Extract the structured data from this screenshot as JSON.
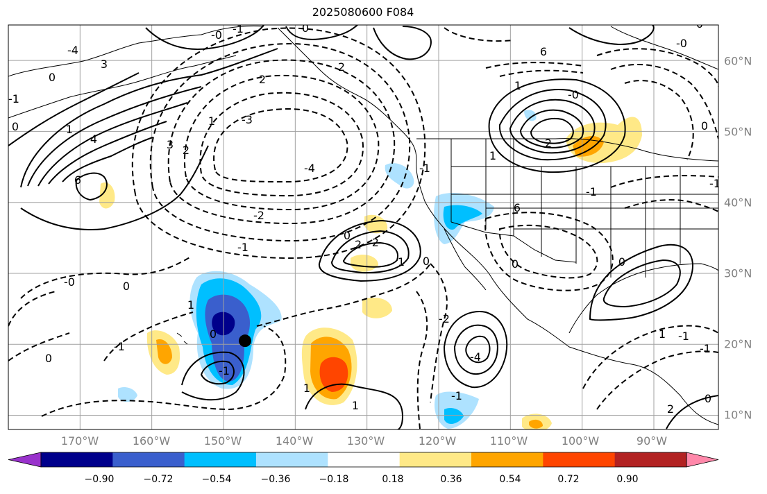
{
  "title": "2025080600 F084",
  "axes": {
    "lon_labels": [
      "170°W",
      "160°W",
      "150°W",
      "140°W",
      "130°W",
      "120°W",
      "110°W",
      "100°W",
      "90°W"
    ],
    "lat_labels": [
      "60°N",
      "50°N",
      "40°N",
      "30°N",
      "20°N",
      "10°N"
    ]
  },
  "colorbar": {
    "tick_labels": [
      "−0.90",
      "−0.72",
      "−0.54",
      "−0.36",
      "−0.18",
      "0.18",
      "0.36",
      "0.54",
      "0.72",
      "0.90"
    ],
    "colors": [
      "#9932cc",
      "#00008b",
      "#3a5fcd",
      "#00bfff",
      "#aee2ff",
      "#ffffff",
      "#ffe987",
      "#ffa500",
      "#ff4500",
      "#b22222",
      "#ff88aa"
    ]
  },
  "contour_labels": [
    "-4",
    "3",
    "0",
    "0",
    "1",
    "4",
    "6",
    "3",
    "-1",
    "-0",
    "0",
    "-1",
    "2",
    "2",
    "1",
    "2",
    "-3",
    "-4",
    "-2",
    "-1",
    "0",
    "2",
    "-2",
    "1",
    "-0",
    "0",
    "1",
    "0",
    "-1",
    "0",
    "1",
    "1",
    "-1",
    "0",
    "-2",
    "-4",
    "0",
    "6",
    "1",
    "-0",
    "2",
    "1",
    "-1",
    "0",
    "-0",
    "0",
    "1",
    "-1",
    "2",
    "-1",
    "0",
    "-1",
    "-1",
    "0",
    "6",
    "-1"
  ],
  "chart_data": {
    "type": "map",
    "title": "2025080600 F084",
    "lon_range": [
      -180,
      -81
    ],
    "lat_range": [
      8,
      65
    ],
    "shading_levels": [
      -0.9,
      -0.72,
      -0.54,
      -0.36,
      -0.18,
      0.18,
      0.36,
      0.54,
      0.72,
      0.9
    ],
    "marker": {
      "lon": -147,
      "lat": 20.5
    }
  }
}
